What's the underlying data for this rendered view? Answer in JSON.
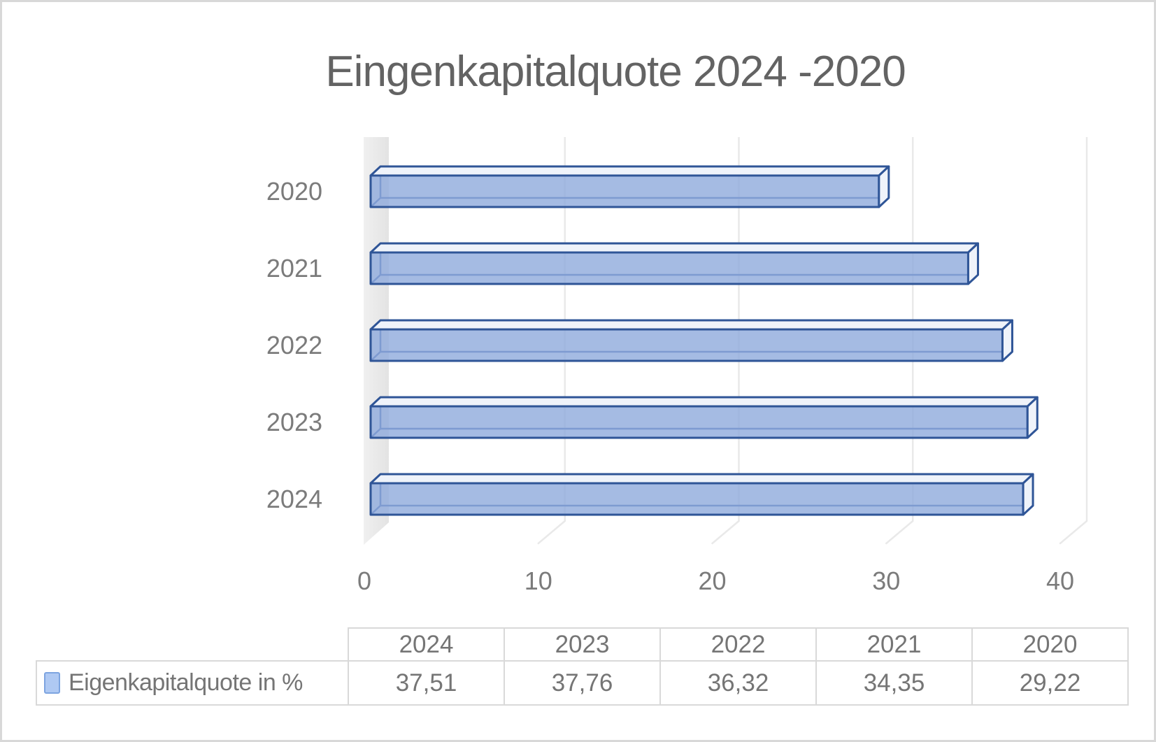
{
  "window": {
    "background": "#FFFFFF",
    "frame_border_color": "#D8D8D8"
  },
  "chart_data": {
    "type": "bar",
    "orientation": "horizontal",
    "style": "3d",
    "title": "Eingenkapitalquote 2024 -2020",
    "categories": [
      "2020",
      "2021",
      "2022",
      "2023",
      "2024"
    ],
    "series": [
      {
        "name": "Eigenkapitalquote in %",
        "values": [
          29.22,
          34.35,
          36.32,
          37.76,
          37.51
        ]
      }
    ],
    "x_ticks": [
      0,
      10,
      20,
      30,
      40
    ],
    "xlim": [
      0,
      45
    ],
    "grid": true,
    "legend_position": "bottom-table",
    "bar_fill": "#8FAADC",
    "bar_border": "#2F5597",
    "bar_top_fill": "#EFF3FA",
    "bar_hidden_edge": "#3D5FA5",
    "gridline_color": "#E9E9E9",
    "wall_color_dark": "#E3E3E3",
    "wall_color_light": "#F0F0F0",
    "axis_text_color": "#7B7B7B",
    "title_color": "#636363"
  },
  "table": {
    "columns": [
      "2024",
      "2023",
      "2022",
      "2021",
      "2020"
    ],
    "rows": [
      {
        "label": "Eigenkapitalquote in %",
        "values": [
          "37,51",
          "37,76",
          "36,32",
          "34,35",
          "29,22"
        ]
      }
    ],
    "swatch_fill": "#AFC9F3",
    "swatch_border": "#7DA4E0",
    "border_color": "#D9D9D9",
    "text_color": "#757575"
  }
}
